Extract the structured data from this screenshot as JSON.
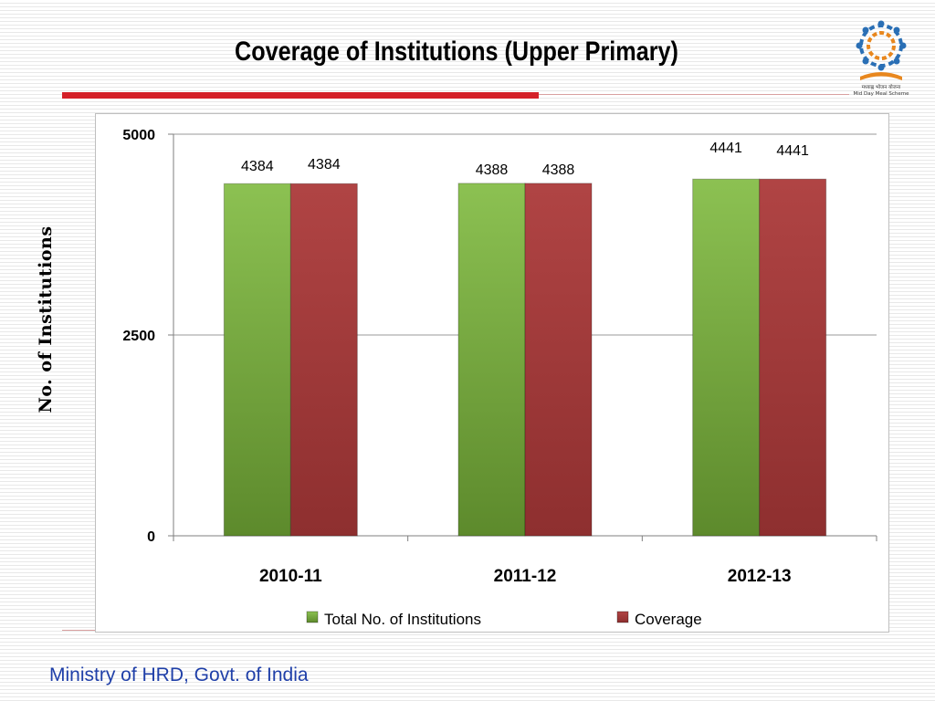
{
  "slide": {
    "title": "Coverage of Institutions (Upper Primary)",
    "footer": "Ministry of HRD, Govt. of India",
    "logo_icon": "mid-day-meal-scheme-logo",
    "logo_caption_hindi": "मध्याह्न भोजन योजना",
    "logo_caption_english": "Mid Day Meal Scheme"
  },
  "chart_data": {
    "type": "bar",
    "title": "",
    "xlabel": "",
    "ylabel": "No. of Institutions",
    "ylim": [
      0,
      5000
    ],
    "yticks": [
      0,
      2500,
      5000
    ],
    "grid": true,
    "legend_position": "bottom",
    "categories": [
      "2010-11",
      "2011-12",
      "2012-13"
    ],
    "series": [
      {
        "name": "Total No. of Institutions",
        "values": [
          4384,
          4388,
          4441
        ],
        "color": "#77a73a"
      },
      {
        "name": "Coverage",
        "values": [
          4384,
          4388,
          4441
        ],
        "color": "#a43a3a"
      }
    ]
  }
}
